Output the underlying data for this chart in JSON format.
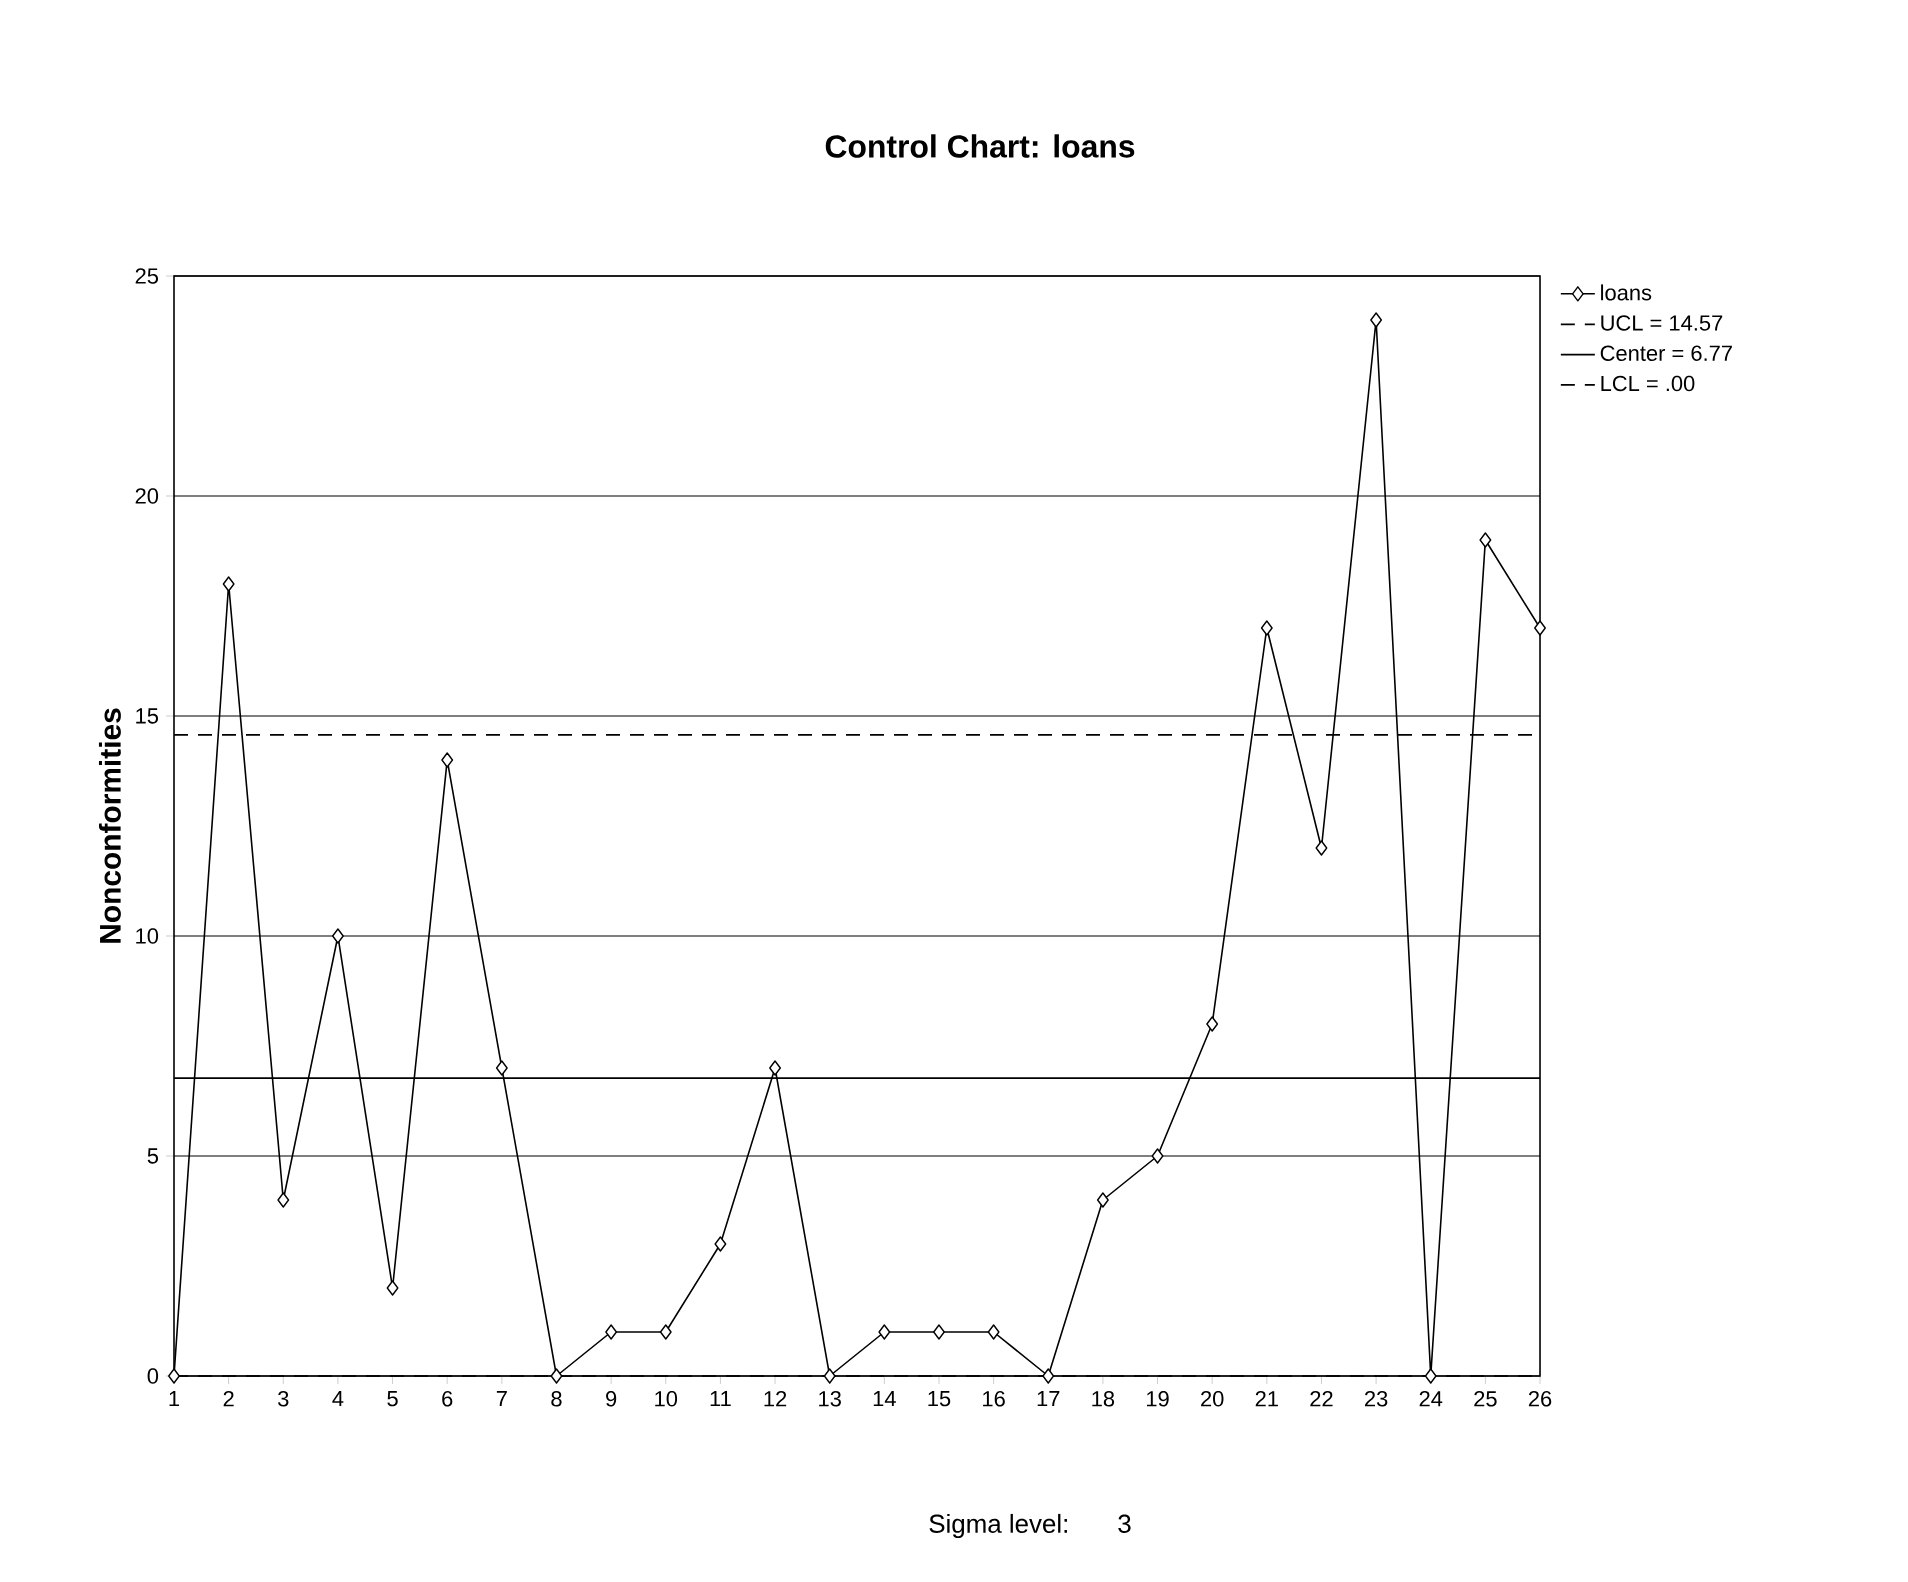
{
  "chart_data": {
    "type": "line",
    "title": "Control Chart: loans",
    "ylabel": "Nonconformities",
    "annotations": [
      "Sigma level:     3"
    ],
    "x": [
      1,
      2,
      3,
      4,
      5,
      6,
      7,
      8,
      9,
      10,
      11,
      12,
      13,
      14,
      15,
      16,
      17,
      18,
      19,
      20,
      21,
      22,
      23,
      24,
      25,
      26
    ],
    "series": [
      {
        "name": "loans",
        "color": "#000000",
        "values": [
          0,
          18,
          4,
          10,
          2,
          14,
          7,
          0,
          1,
          1,
          3,
          7,
          0,
          1,
          1,
          1,
          0,
          4,
          5,
          8,
          17,
          12,
          24,
          0,
          19,
          17
        ]
      }
    ],
    "xlim": [
      1,
      26
    ],
    "xticks": [
      1,
      2,
      3,
      4,
      5,
      6,
      7,
      8,
      9,
      10,
      11,
      12,
      13,
      14,
      15,
      16,
      17,
      18,
      19,
      20,
      21,
      22,
      23,
      24,
      25,
      26
    ],
    "ylim": [
      0,
      25
    ],
    "yticks": [
      0,
      5,
      10,
      15,
      20,
      25
    ],
    "ref_lines": [
      {
        "axis": "y",
        "value": 14.57,
        "label": "UCL = 14.57",
        "color": "#000000",
        "line_style": "dashed"
      },
      {
        "axis": "y",
        "value": 6.77,
        "label": "Center = 6.77",
        "color": "#000000",
        "line_style": "solid"
      },
      {
        "axis": "y",
        "value": 0,
        "label": "LCL = .00",
        "color": "#000000",
        "line_style": "dashed"
      }
    ],
    "grid": "y",
    "legend": "top right",
    "marker": "diamond",
    "line_style": "solid"
  }
}
